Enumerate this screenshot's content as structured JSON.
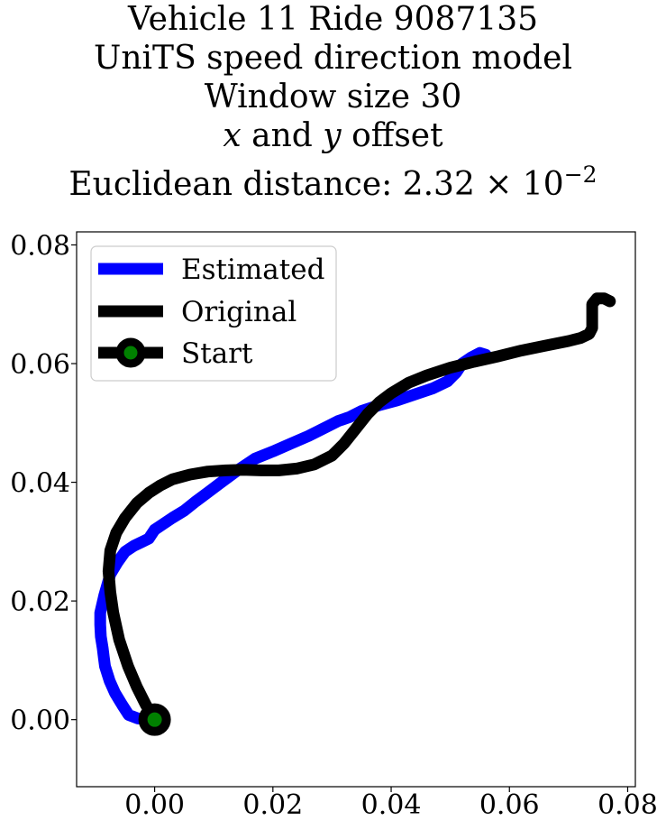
{
  "chart_data": {
    "type": "line",
    "title_lines": [
      "Vehicle 11 Ride 9087135",
      "UniTS speed direction model",
      "Window size 30",
      "x and y offset",
      "Euclidean distance: 2.32 × 10⁻²"
    ],
    "title_parts": {
      "offset_x": "x",
      "offset_and": " and ",
      "offset_y": "y",
      "offset_suffix": " offset",
      "distance_prefix": "Euclidean distance: 2.32 × 10",
      "distance_exponent": "−2"
    },
    "xlim": [
      -0.0132,
      0.0813
    ],
    "ylim": [
      -0.0113,
      0.0822
    ],
    "xticks": [
      0.0,
      0.02,
      0.04,
      0.06,
      0.08
    ],
    "xtick_labels": [
      "0.00",
      "0.02",
      "0.04",
      "0.06",
      "0.08"
    ],
    "yticks": [
      0.0,
      0.02,
      0.04,
      0.06,
      0.08
    ],
    "ytick_labels": [
      "0.00",
      "0.02",
      "0.04",
      "0.06",
      "0.08"
    ],
    "grid": false,
    "legend_position": "upper-left",
    "series": [
      {
        "name": "Estimated",
        "color": "#0000ff",
        "points": [
          [
            -0.0003,
            0.0001
          ],
          [
            -0.0028,
            0.0002
          ],
          [
            -0.0044,
            0.0008
          ],
          [
            -0.0055,
            0.0025
          ],
          [
            -0.0067,
            0.0045
          ],
          [
            -0.0076,
            0.0065
          ],
          [
            -0.0084,
            0.009
          ],
          [
            -0.0086,
            0.0105
          ],
          [
            -0.0088,
            0.0121
          ],
          [
            -0.0091,
            0.014
          ],
          [
            -0.0092,
            0.016
          ],
          [
            -0.0092,
            0.018
          ],
          [
            -0.0085,
            0.021
          ],
          [
            -0.0075,
            0.0245
          ],
          [
            -0.0063,
            0.0265
          ],
          [
            -0.005,
            0.0283
          ],
          [
            -0.0035,
            0.0293
          ],
          [
            -0.002,
            0.03
          ],
          [
            -0.001,
            0.0305
          ],
          [
            0.0,
            0.032
          ],
          [
            0.0015,
            0.033
          ],
          [
            0.003,
            0.034
          ],
          [
            0.005,
            0.0352
          ],
          [
            0.007,
            0.0368
          ],
          [
            0.009,
            0.0383
          ],
          [
            0.011,
            0.0398
          ],
          [
            0.014,
            0.042
          ],
          [
            0.017,
            0.044
          ],
          [
            0.02,
            0.0452
          ],
          [
            0.023,
            0.0465
          ],
          [
            0.026,
            0.0478
          ],
          [
            0.029,
            0.0493
          ],
          [
            0.031,
            0.0503
          ],
          [
            0.033,
            0.051
          ],
          [
            0.035,
            0.052
          ],
          [
            0.038,
            0.053
          ],
          [
            0.041,
            0.0538
          ],
          [
            0.044,
            0.0548
          ],
          [
            0.047,
            0.0558
          ],
          [
            0.0495,
            0.057
          ],
          [
            0.051,
            0.0585
          ],
          [
            0.052,
            0.06
          ],
          [
            0.0535,
            0.061
          ],
          [
            0.055,
            0.0618
          ],
          [
            0.056,
            0.0615
          ]
        ]
      },
      {
        "name": "Original",
        "color": "#000000",
        "points": [
          [
            0.0,
            0.0
          ],
          [
            -0.0015,
            0.0025
          ],
          [
            -0.003,
            0.0055
          ],
          [
            -0.0045,
            0.009
          ],
          [
            -0.006,
            0.0135
          ],
          [
            -0.007,
            0.018
          ],
          [
            -0.0075,
            0.0215
          ],
          [
            -0.0078,
            0.025
          ],
          [
            -0.0075,
            0.0285
          ],
          [
            -0.0065,
            0.0315
          ],
          [
            -0.005,
            0.034
          ],
          [
            -0.003,
            0.0365
          ],
          [
            -0.001,
            0.0382
          ],
          [
            0.001,
            0.0395
          ],
          [
            0.003,
            0.0405
          ],
          [
            0.006,
            0.0413
          ],
          [
            0.009,
            0.0418
          ],
          [
            0.012,
            0.042
          ],
          [
            0.015,
            0.0421
          ],
          [
            0.018,
            0.042
          ],
          [
            0.021,
            0.042
          ],
          [
            0.024,
            0.0423
          ],
          [
            0.027,
            0.043
          ],
          [
            0.03,
            0.0445
          ],
          [
            0.032,
            0.0465
          ],
          [
            0.034,
            0.049
          ],
          [
            0.036,
            0.0515
          ],
          [
            0.038,
            0.0535
          ],
          [
            0.04,
            0.055
          ],
          [
            0.043,
            0.0568
          ],
          [
            0.046,
            0.058
          ],
          [
            0.05,
            0.0593
          ],
          [
            0.054,
            0.0603
          ],
          [
            0.058,
            0.0612
          ],
          [
            0.062,
            0.0622
          ],
          [
            0.066,
            0.063
          ],
          [
            0.07,
            0.0638
          ],
          [
            0.072,
            0.0643
          ],
          [
            0.0735,
            0.065
          ],
          [
            0.074,
            0.066
          ],
          [
            0.074,
            0.068
          ],
          [
            0.074,
            0.07
          ],
          [
            0.0748,
            0.071
          ],
          [
            0.076,
            0.071
          ],
          [
            0.077,
            0.0705
          ]
        ]
      }
    ],
    "start_marker": {
      "name": "Start",
      "point": [
        0.0,
        0.0
      ],
      "edge_color": "#000000",
      "face_color": "#008000"
    },
    "legend": {
      "entries": [
        "Estimated",
        "Original",
        "Start"
      ]
    }
  }
}
